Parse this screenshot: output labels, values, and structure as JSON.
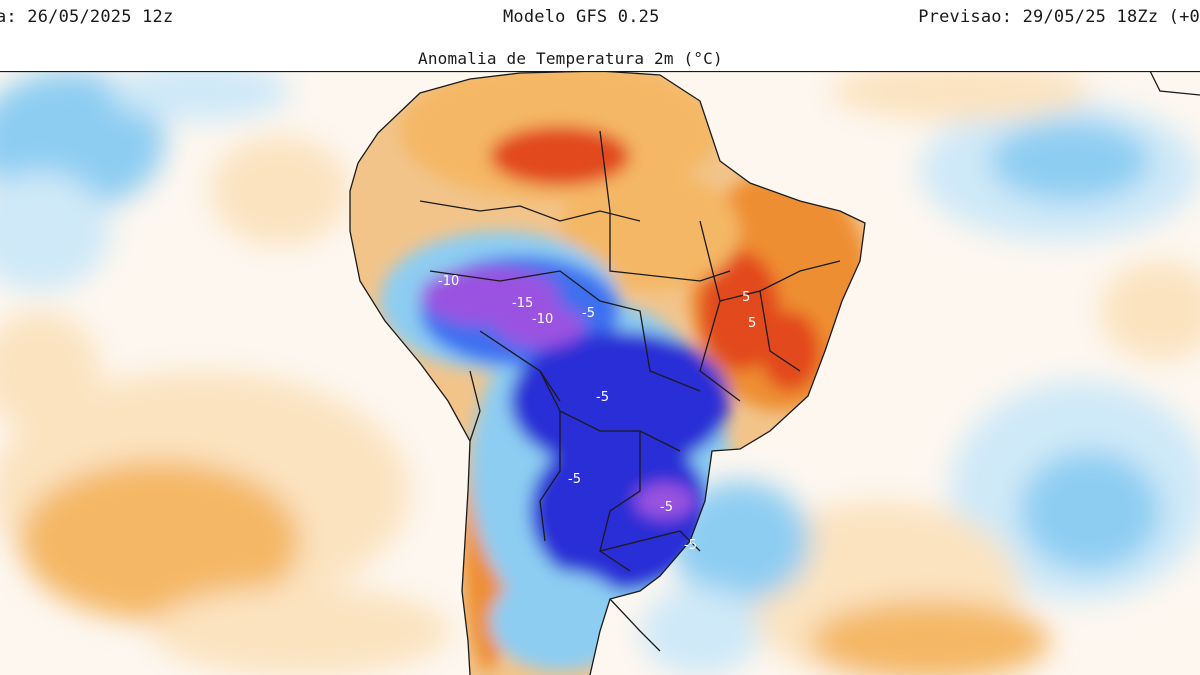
{
  "header": {
    "run_label": "a: 26/05/2025 12z",
    "model_label": "Modelo GFS 0.25",
    "valid_label": "Previsao: 29/05/25 18Zz (+0",
    "map_title": "Anomalia de Temperatura 2m (°C)"
  },
  "map": {
    "region": "South America",
    "colors": {
      "ocean_neutral": "#ffffff",
      "warm_light": "#fbe3c0",
      "warm_mid": "#f4b765",
      "warm_strong": "#ee8e33",
      "hot": "#e2491d",
      "cool_light": "#cfe9f8",
      "cool_mid": "#8dcdf2",
      "cold": "#3e6ff0",
      "very_cold": "#2a2fd6",
      "extreme_cold": "#9a52e0",
      "borders": "#1a1a1a"
    },
    "contour_labels": [
      "-10",
      "-15",
      "-10",
      "-5",
      "-5",
      "-5",
      "-5",
      "5",
      "5",
      "-5"
    ]
  }
}
